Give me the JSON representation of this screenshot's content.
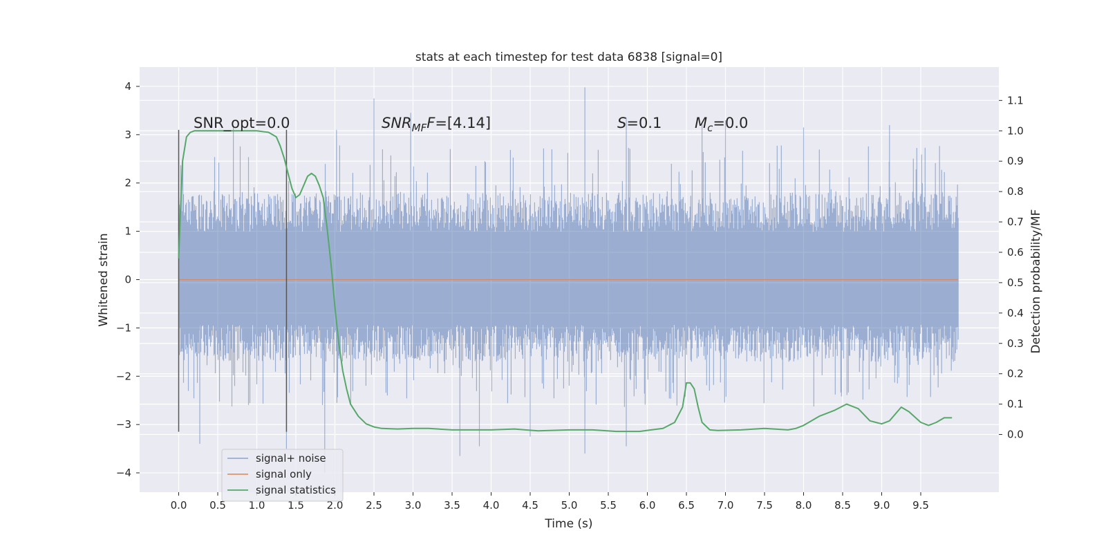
{
  "chart_data": {
    "type": "line",
    "title": "stats at each timestep for test data 6838 [signal=0]",
    "xlabel": "Time (s)",
    "ylabel": "Whitened strain",
    "y2label": "Detection probability/MF",
    "xlim": [
      -0.5,
      10.5
    ],
    "ylim": [
      -4.4,
      4.4
    ],
    "y2lim": [
      -0.19,
      1.21
    ],
    "xticks": [
      "0.0",
      "0.5",
      "1.0",
      "1.5",
      "2.0",
      "2.5",
      "3.0",
      "3.5",
      "4.0",
      "4.5",
      "5.0",
      "5.5",
      "6.0",
      "6.5",
      "7.0",
      "7.5",
      "8.0",
      "8.5",
      "9.0",
      "9.5"
    ],
    "yticks": [
      "−4",
      "−3",
      "−2",
      "−1",
      "0",
      "1",
      "2",
      "3",
      "4"
    ],
    "y2ticks": [
      "0.0",
      "0.1",
      "0.2",
      "0.3",
      "0.4",
      "0.5",
      "0.6",
      "0.7",
      "0.8",
      "0.9",
      "1.0",
      "1.1"
    ],
    "grid": true,
    "legend_position": "lower-left",
    "annotations": {
      "snr_opt": "SNR_opt=0.0",
      "snr_mf_sym": "SNR",
      "snr_mf_sub": "MF",
      "snr_mf_val": "=[4.14]",
      "s_sym": "S",
      "s_val": "=0.1",
      "mc_sym": "M",
      "mc_sub": "c",
      "mc_val": "=0.0"
    },
    "markers": [
      {
        "x": 0.0,
        "y_range": [
          -3.15,
          3.1
        ]
      },
      {
        "x": 1.38,
        "y_range": [
          -3.15,
          3.1
        ]
      }
    ],
    "series": [
      {
        "name": "signal+ noise",
        "axis": "left",
        "color": "#4c72b0",
        "x_range": [
          0.0,
          9.98
        ],
        "envelope": {
          "typical": [
            -1.7,
            1.8
          ],
          "extremes": [
            -3.65,
            4.0
          ]
        },
        "spikes": [
          {
            "x": 0.27,
            "y": -3.4
          },
          {
            "x": 0.7,
            "y": 3.15
          },
          {
            "x": 1.38,
            "y": -3.5
          },
          {
            "x": 1.87,
            "y": -4.0
          },
          {
            "x": 2.02,
            "y": 3.1
          },
          {
            "x": 2.5,
            "y": 3.75
          },
          {
            "x": 2.97,
            "y": 3.45
          },
          {
            "x": 3.6,
            "y": -3.65
          },
          {
            "x": 3.85,
            "y": -3.45
          },
          {
            "x": 4.5,
            "y": -3.25
          },
          {
            "x": 5.2,
            "y": 3.98
          },
          {
            "x": 5.2,
            "y": -3.6
          },
          {
            "x": 5.73,
            "y": 3.35
          },
          {
            "x": 5.73,
            "y": -3.45
          },
          {
            "x": 6.7,
            "y": 3.25
          },
          {
            "x": 7.0,
            "y": 3.3
          },
          {
            "x": 8.0,
            "y": 3.15
          },
          {
            "x": 9.1,
            "y": 3.2
          }
        ]
      },
      {
        "name": "signal only",
        "axis": "left",
        "color": "#dd8452",
        "x_range": [
          0.0,
          9.98
        ],
        "y": 0.0
      },
      {
        "name": "signal statistics",
        "axis": "right",
        "color": "#55a868",
        "x": [
          0.0,
          0.02,
          0.05,
          0.1,
          0.15,
          0.2,
          0.3,
          0.5,
          0.8,
          1.0,
          1.15,
          1.25,
          1.3,
          1.35,
          1.4,
          1.45,
          1.5,
          1.55,
          1.6,
          1.65,
          1.7,
          1.75,
          1.8,
          1.85,
          1.9,
          1.95,
          2.0,
          2.05,
          2.1,
          2.15,
          2.2,
          2.3,
          2.4,
          2.5,
          2.6,
          2.8,
          3.0,
          3.2,
          3.5,
          4.0,
          4.3,
          4.6,
          5.0,
          5.3,
          5.6,
          5.9,
          6.05,
          6.2,
          6.35,
          6.45,
          6.5,
          6.55,
          6.6,
          6.65,
          6.7,
          6.8,
          6.9,
          7.2,
          7.5,
          7.8,
          7.9,
          8.0,
          8.2,
          8.4,
          8.55,
          8.7,
          8.85,
          9.0,
          9.1,
          9.2,
          9.25,
          9.35,
          9.5,
          9.6,
          9.7,
          9.8,
          9.9
        ],
        "y": [
          0.58,
          0.72,
          0.9,
          0.98,
          0.995,
          1.0,
          1.0,
          1.0,
          1.0,
          1.0,
          0.995,
          0.98,
          0.95,
          0.91,
          0.86,
          0.81,
          0.78,
          0.79,
          0.82,
          0.85,
          0.86,
          0.85,
          0.82,
          0.78,
          0.68,
          0.56,
          0.42,
          0.3,
          0.21,
          0.15,
          0.1,
          0.06,
          0.035,
          0.025,
          0.02,
          0.018,
          0.02,
          0.02,
          0.015,
          0.015,
          0.018,
          0.012,
          0.015,
          0.015,
          0.01,
          0.01,
          0.015,
          0.02,
          0.04,
          0.09,
          0.17,
          0.17,
          0.15,
          0.09,
          0.04,
          0.015,
          0.013,
          0.015,
          0.02,
          0.015,
          0.02,
          0.03,
          0.06,
          0.08,
          0.1,
          0.085,
          0.045,
          0.035,
          0.045,
          0.075,
          0.09,
          0.075,
          0.04,
          0.03,
          0.04,
          0.055,
          0.055
        ]
      }
    ]
  }
}
